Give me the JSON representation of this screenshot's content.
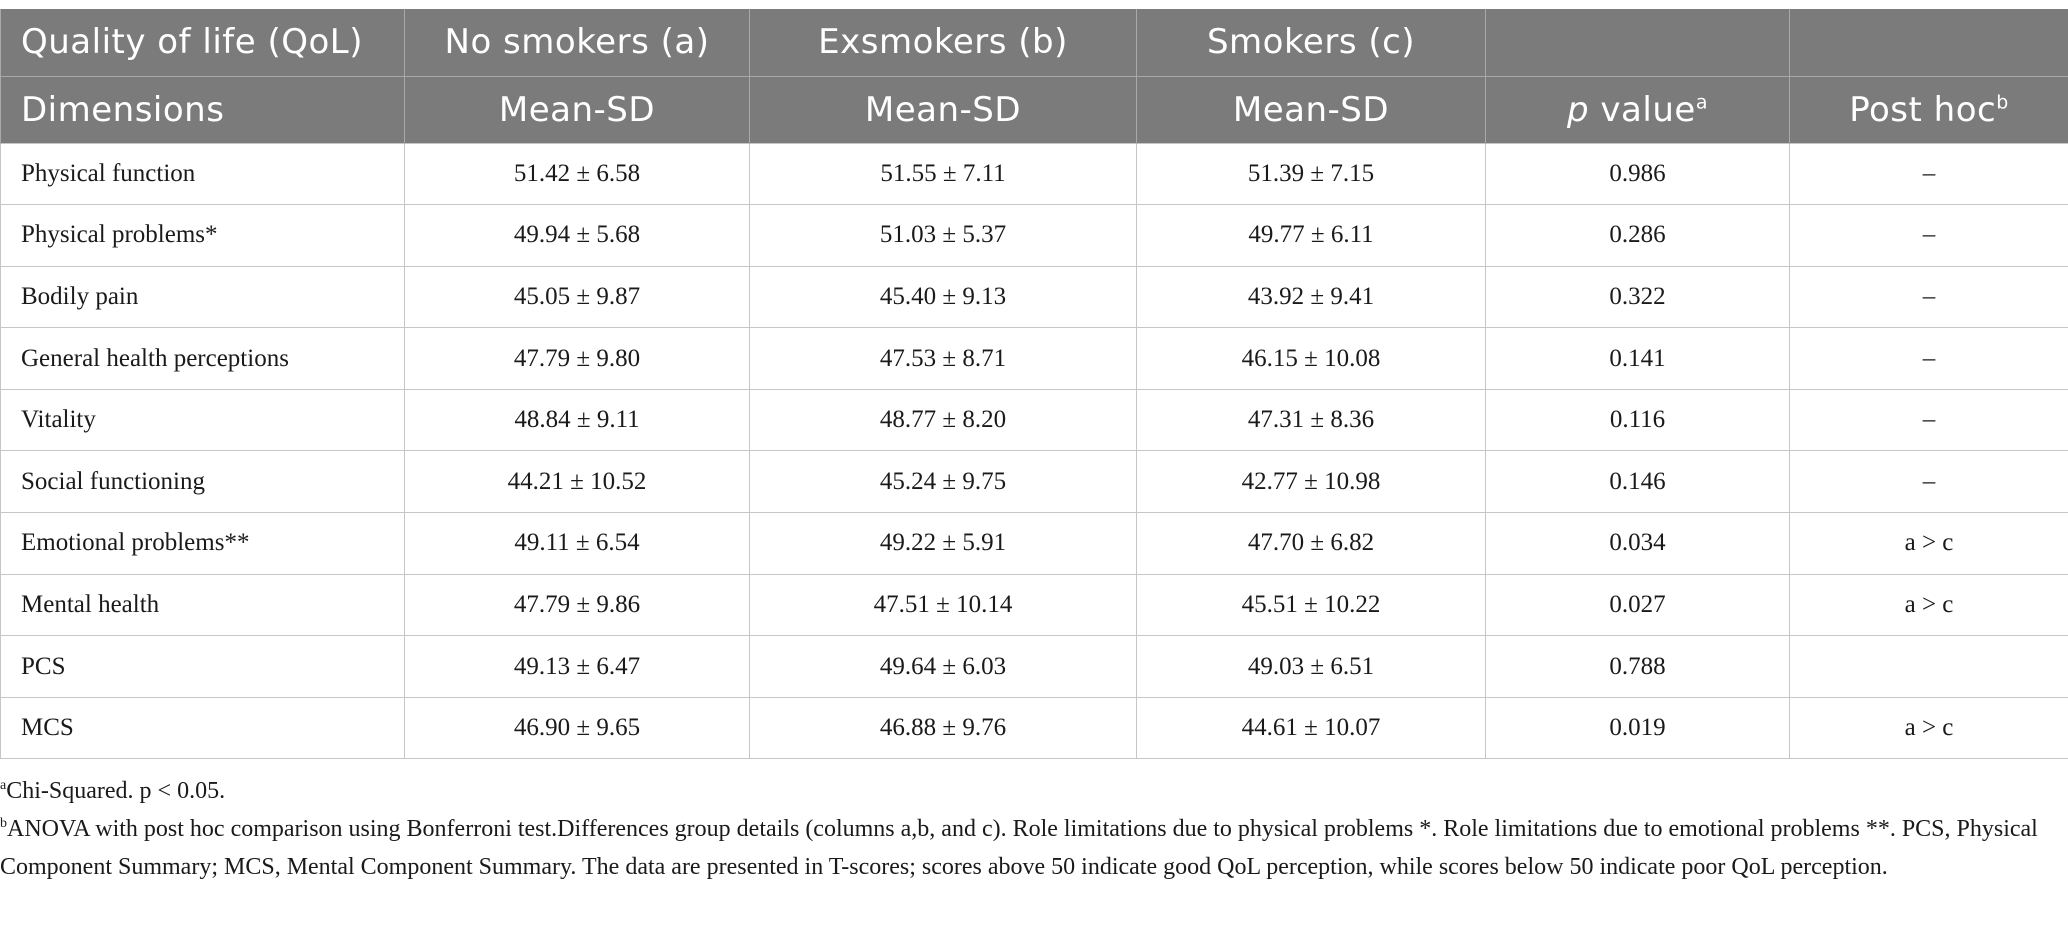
{
  "header": {
    "row1": {
      "col1": "Quality of life (QoL)",
      "col2": "No smokers (a)",
      "col3": "Exsmokers (b)",
      "col4": "Smokers (c)",
      "col5": "",
      "col6": ""
    },
    "row2": {
      "col1": "Dimensions",
      "col2": "Mean-SD",
      "col3": "Mean-SD",
      "col4": "Mean-SD",
      "p_italic": "p",
      "p_rest": " value",
      "p_sup": "a",
      "posthoc": "Post hoc",
      "posthoc_sup": "b"
    }
  },
  "rows": [
    {
      "dimension": "Physical function",
      "a": "51.42 ± 6.58",
      "b": "51.55 ± 7.11",
      "c": "51.39 ± 7.15",
      "p": "0.986",
      "posthoc": "–"
    },
    {
      "dimension": "Physical problems*",
      "a": "49.94 ± 5.68",
      "b": "51.03 ± 5.37",
      "c": "49.77 ± 6.11",
      "p": "0.286",
      "posthoc": "–"
    },
    {
      "dimension": "Bodily pain",
      "a": "45.05 ± 9.87",
      "b": "45.40 ± 9.13",
      "c": "43.92 ± 9.41",
      "p": "0.322",
      "posthoc": "–"
    },
    {
      "dimension": "General health perceptions",
      "a": "47.79 ± 9.80",
      "b": "47.53 ± 8.71",
      "c": "46.15 ± 10.08",
      "p": "0.141",
      "posthoc": "–"
    },
    {
      "dimension": "Vitality",
      "a": "48.84 ± 9.11",
      "b": "48.77 ± 8.20",
      "c": "47.31 ± 8.36",
      "p": "0.116",
      "posthoc": "–"
    },
    {
      "dimension": "Social functioning",
      "a": "44.21 ± 10.52",
      "b": "45.24 ± 9.75",
      "c": "42.77 ± 10.98",
      "p": "0.146",
      "posthoc": "–"
    },
    {
      "dimension": "Emotional problems**",
      "a": "49.11 ± 6.54",
      "b": "49.22 ± 5.91",
      "c": "47.70 ± 6.82",
      "p": "0.034",
      "posthoc": "a > c"
    },
    {
      "dimension": "Mental health",
      "a": "47.79 ± 9.86",
      "b": "47.51 ± 10.14",
      "c": "45.51 ± 10.22",
      "p": "0.027",
      "posthoc": "a > c"
    },
    {
      "dimension": "PCS",
      "a": "49.13 ± 6.47",
      "b": "49.64 ± 6.03",
      "c": "49.03 ± 6.51",
      "p": "0.788",
      "posthoc": ""
    },
    {
      "dimension": "MCS",
      "a": "46.90 ± 9.65",
      "b": "46.88 ± 9.76",
      "c": "44.61 ± 10.07",
      "p": "0.019",
      "posthoc": "a > c"
    }
  ],
  "footnotes": {
    "a_marker": "a",
    "a_text": "Chi-Squared. p < 0.05.",
    "b_marker": "b",
    "b_text": "ANOVA with post hoc comparison using Bonferroni test.Differences group details (columns a,b, and c). Role limitations due to physical problems *. Role limitations due to emotional problems **. PCS, Physical Component Summary; MCS, Mental Component Summary. The data are presented in T-scores; scores above 50 indicate good QoL perception, while scores below 50 indicate poor QoL perception."
  },
  "colors": {
    "header_bg": "#7b7b7b",
    "header_text": "#ffffff",
    "grid": "#c6c6c6"
  }
}
